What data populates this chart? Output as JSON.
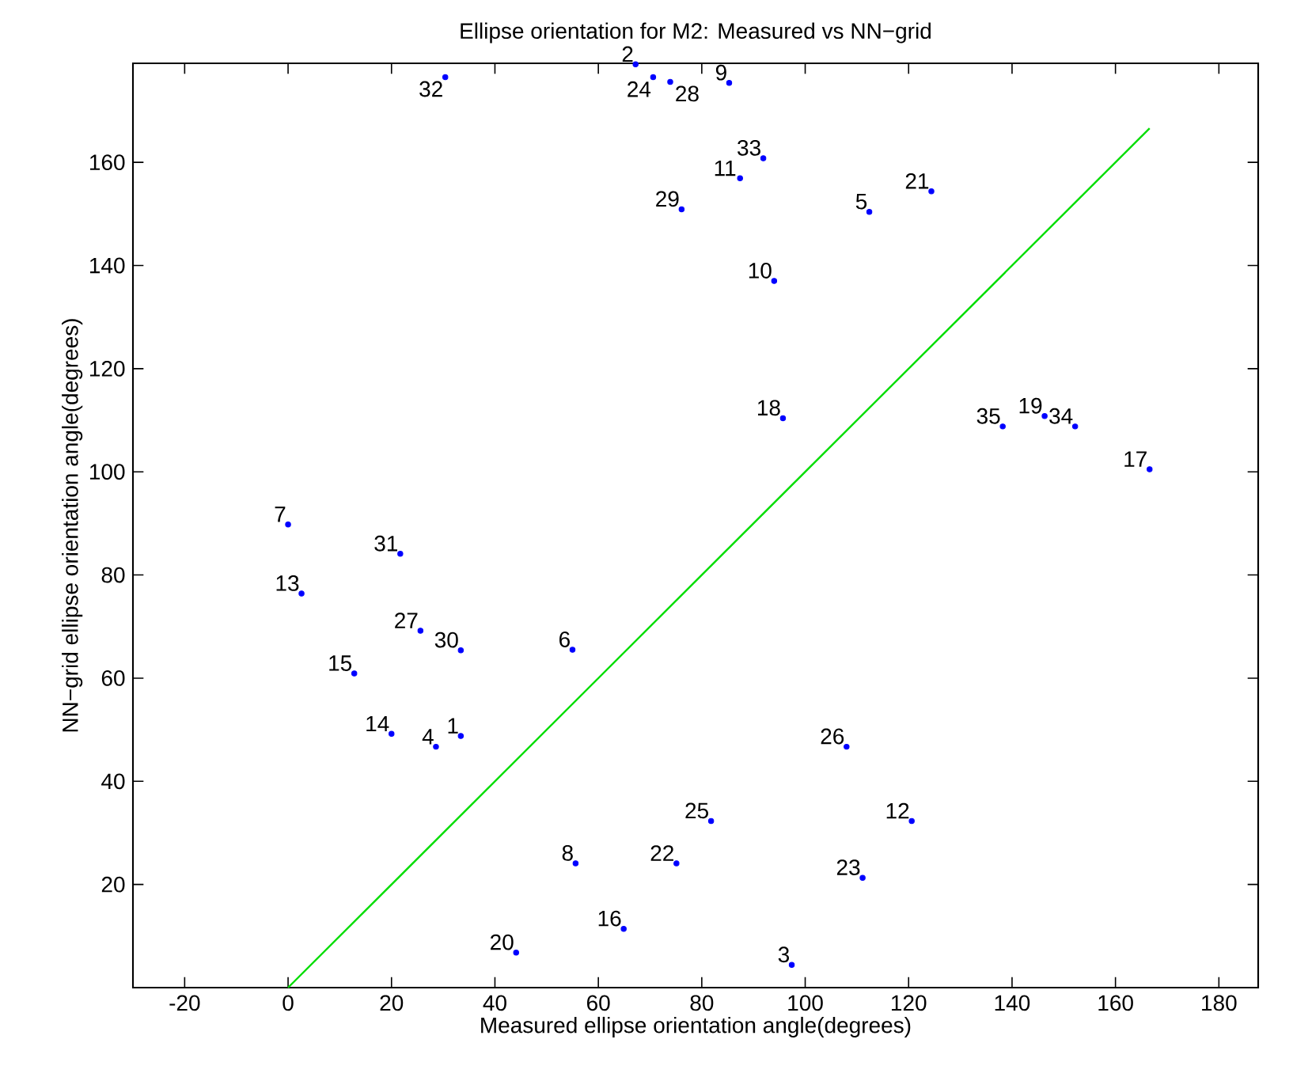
{
  "chart_data": {
    "type": "scatter",
    "title": "Ellipse orientation for M2: Measured vs NN−grid",
    "xlabel": "Measured ellipse orientation angle(degrees)",
    "ylabel": "NN−grid ellipse orientation angle(degrees)",
    "xlim": [
      -30,
      187.6
    ],
    "ylim": [
      0,
      179.2
    ],
    "xticks": [
      -20,
      0,
      20,
      40,
      60,
      80,
      100,
      120,
      140,
      160,
      180
    ],
    "yticks": [
      20,
      40,
      60,
      80,
      100,
      120,
      140,
      160
    ],
    "grid": false,
    "series": [
      {
        "color": "#0000ff",
        "marker": "circle",
        "x": [
          33.4,
          67.2,
          97.4,
          28.6,
          112.4,
          55.0,
          0.0,
          55.6,
          85.3,
          94.0,
          87.4,
          120.6,
          2.6,
          20.0,
          12.8,
          64.9,
          166.6,
          95.7,
          146.3,
          44.1,
          124.4,
          75.1,
          111.1,
          70.6,
          81.8,
          108.0,
          25.6,
          73.9,
          76.1,
          33.4,
          21.7,
          30.4,
          91.9,
          152.2,
          138.2
        ],
        "values": [
          48.8,
          179,
          4.4,
          46.7,
          150.4,
          65.5,
          89.8,
          24.1,
          175.4,
          137.0,
          156.9,
          32.3,
          76.4,
          49.2,
          60.9,
          11.4,
          100.5,
          110.4,
          110.8,
          6.8,
          154.4,
          24.1,
          21.3,
          176.5,
          32.3,
          46.7,
          69.2,
          175.6,
          150.9,
          65.4,
          84.1,
          176.5,
          160.8,
          108.8,
          108.8
        ]
      },
      {
        "type": "line",
        "color": "#00dd00",
        "line_style": "solid",
        "marker": "none",
        "x": [
          0,
          166.6
        ],
        "values": [
          0,
          166.6
        ]
      }
    ],
    "annotations": [
      {
        "text": "1",
        "x": 33.4,
        "y": 48.8
      },
      {
        "text": "2",
        "x": 67.2,
        "y": 179
      },
      {
        "text": "3",
        "x": 97.4,
        "y": 4.4
      },
      {
        "text": "4",
        "x": 28.6,
        "y": 46.7
      },
      {
        "text": "5",
        "x": 112.4,
        "y": 150.4
      },
      {
        "text": "6",
        "x": 55.0,
        "y": 65.5
      },
      {
        "text": "7",
        "x": 0.0,
        "y": 89.8
      },
      {
        "text": "8",
        "x": 55.6,
        "y": 24.1
      },
      {
        "text": "9",
        "x": 85.3,
        "y": 175.4
      },
      {
        "text": "10",
        "x": 94.0,
        "y": 137.0
      },
      {
        "text": "11",
        "x": 87.4,
        "y": 156.9
      },
      {
        "text": "12",
        "x": 120.6,
        "y": 32.3
      },
      {
        "text": "13",
        "x": 2.6,
        "y": 76.4
      },
      {
        "text": "14",
        "x": 20.0,
        "y": 49.2
      },
      {
        "text": "15",
        "x": 12.8,
        "y": 60.9
      },
      {
        "text": "16",
        "x": 64.9,
        "y": 11.4
      },
      {
        "text": "17",
        "x": 166.6,
        "y": 100.5
      },
      {
        "text": "18",
        "x": 95.7,
        "y": 110.4
      },
      {
        "text": "19",
        "x": 146.3,
        "y": 110.8
      },
      {
        "text": "20",
        "x": 44.1,
        "y": 6.8
      },
      {
        "text": "21",
        "x": 124.4,
        "y": 154.4
      },
      {
        "text": "22",
        "x": 75.1,
        "y": 24.1
      },
      {
        "text": "23",
        "x": 111.1,
        "y": 21.3
      },
      {
        "text": "24",
        "x": 70.6,
        "y": 176.5
      },
      {
        "text": "25",
        "x": 81.8,
        "y": 32.3
      },
      {
        "text": "26",
        "x": 108.0,
        "y": 46.7
      },
      {
        "text": "27",
        "x": 25.6,
        "y": 69.2
      },
      {
        "text": "28",
        "x": 73.9,
        "y": 175.6
      },
      {
        "text": "29",
        "x": 76.1,
        "y": 150.9
      },
      {
        "text": "30",
        "x": 33.4,
        "y": 65.4
      },
      {
        "text": "31",
        "x": 21.7,
        "y": 84.1
      },
      {
        "text": "32",
        "x": 30.4,
        "y": 176.5
      },
      {
        "text": "33",
        "x": 91.9,
        "y": 160.8
      },
      {
        "text": "34",
        "x": 152.2,
        "y": 108.8
      },
      {
        "text": "35",
        "x": 138.2,
        "y": 108.8
      }
    ]
  }
}
